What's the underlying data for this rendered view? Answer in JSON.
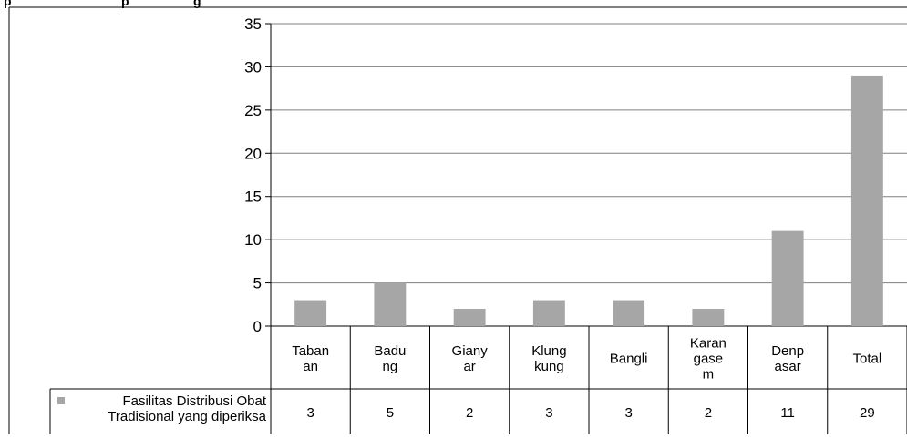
{
  "chart_data": {
    "type": "bar",
    "categories": [
      [
        "Taban",
        "an"
      ],
      [
        "Badu",
        "ng"
      ],
      [
        "Giany",
        "ar"
      ],
      [
        "Klung",
        "kung"
      ],
      [
        "Bangli"
      ],
      [
        "Karan",
        "gase",
        "m"
      ],
      [
        "Denp",
        "asar"
      ],
      [
        "Total"
      ]
    ],
    "series": [
      {
        "name_lines": [
          "Fasilitas Distribusi Obat",
          "Tradisional yang diperiksa"
        ],
        "values": [
          3,
          5,
          2,
          3,
          3,
          2,
          11,
          29
        ],
        "color": "#a6a6a6"
      }
    ],
    "yticks": [
      "0",
      "5",
      "10",
      "15",
      "20",
      "25",
      "30",
      "35"
    ],
    "ylim": [
      0,
      35
    ],
    "grid": true,
    "data_table": true,
    "colors": {
      "gridline": "#808080",
      "axis": "#000000",
      "bar": "#a6a6a6"
    }
  }
}
